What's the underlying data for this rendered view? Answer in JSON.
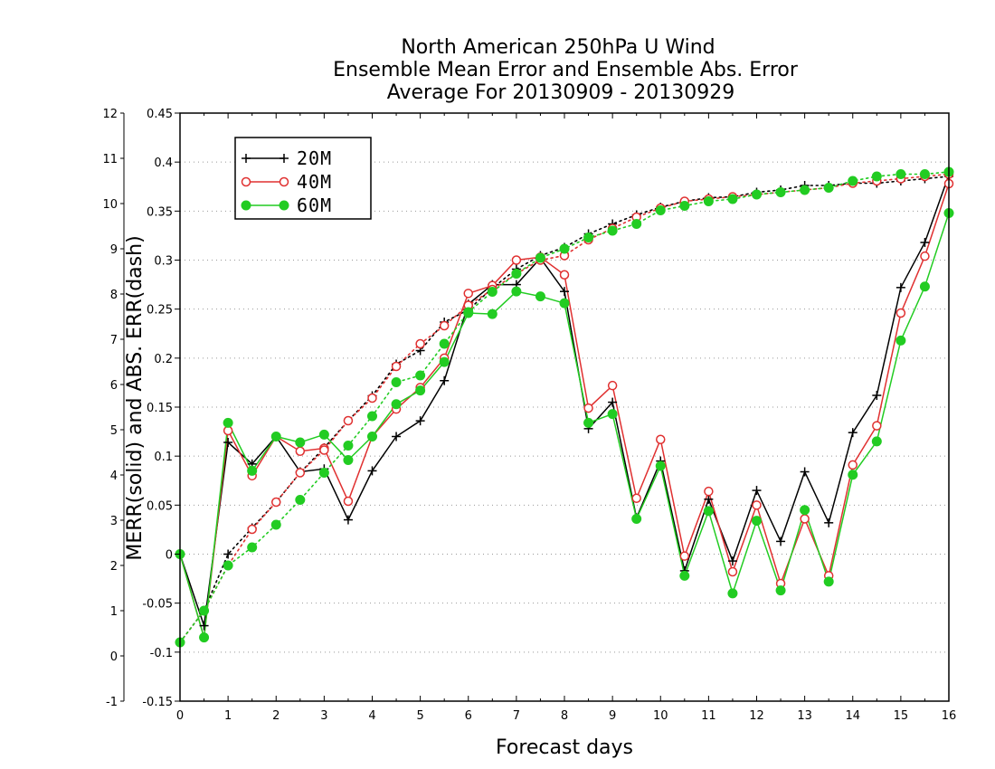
{
  "chart_data": {
    "type": "line",
    "title": [
      "North American 250hPa U Wind",
      "Ensemble Mean Error and Ensemble Abs. Error",
      "Average For 20130909 - 20130929"
    ],
    "xlabel": "Forecast days",
    "ylabel": "MERR(solid) and ABS. ERR(dash)",
    "xlim": [
      0,
      16
    ],
    "x_ticks": [
      "0",
      "1",
      "2",
      "3",
      "4",
      "5",
      "6",
      "7",
      "8",
      "9",
      "10",
      "11",
      "12",
      "13",
      "14",
      "15",
      "16"
    ],
    "ylim_left": [
      -0.15,
      0.45
    ],
    "y_left_ticks": [
      "-0.15",
      "-0.1",
      "-0.05",
      "0",
      "0.05",
      "0.1",
      "0.15",
      "0.2",
      "0.25",
      "0.3",
      "0.35",
      "0.4",
      "0.45"
    ],
    "ylim_right": [
      -1,
      12
    ],
    "y_right_ticks": [
      "-1",
      "0",
      "1",
      "2",
      "3",
      "4",
      "5",
      "6",
      "7",
      "8",
      "9",
      "10",
      "11",
      "12"
    ],
    "grid": "horizontal dotted",
    "legend_position": "top-left",
    "x": [
      0,
      0.5,
      1,
      1.5,
      2,
      2.5,
      3,
      3.5,
      4,
      4.5,
      5,
      5.5,
      6,
      6.5,
      7,
      7.5,
      8,
      8.5,
      9,
      9.5,
      10,
      10.5,
      11,
      11.5,
      12,
      12.5,
      13,
      13.5,
      14,
      14.5,
      15,
      15.5,
      16
    ],
    "series": [
      {
        "name": "20M",
        "color": "#000000",
        "marker": "plus",
        "merr_left_axis": [
          0.0,
          -0.073,
          0.114,
          0.092,
          0.12,
          0.084,
          0.087,
          0.035,
          0.085,
          0.12,
          0.136,
          0.177,
          0.255,
          0.275,
          0.275,
          0.302,
          0.268,
          0.128,
          0.155,
          0.037,
          0.095,
          -0.017,
          0.056,
          -0.007,
          0.065,
          0.013,
          0.084,
          0.032,
          0.124,
          0.162,
          0.272,
          0.318,
          0.387
        ],
        "abs_err_right_axis": [
          0.3,
          1.0,
          2.25,
          2.83,
          3.4,
          4.05,
          4.6,
          5.2,
          5.75,
          6.45,
          6.75,
          7.38,
          7.65,
          8.13,
          8.55,
          8.85,
          9.03,
          9.33,
          9.55,
          9.75,
          9.92,
          10.05,
          10.13,
          10.15,
          10.25,
          10.3,
          10.4,
          10.4,
          10.45,
          10.45,
          10.5,
          10.55,
          10.6
        ]
      },
      {
        "name": "40M",
        "color": "#e03030",
        "marker": "open-circle",
        "merr_left_axis": [
          0.0,
          -0.085,
          0.126,
          0.08,
          0.12,
          0.105,
          0.108,
          0.054,
          0.12,
          0.148,
          0.17,
          0.2,
          0.266,
          0.274,
          0.3,
          0.303,
          0.285,
          0.149,
          0.172,
          0.057,
          0.117,
          -0.002,
          0.064,
          -0.018,
          0.05,
          -0.03,
          0.036,
          -0.022,
          0.091,
          0.131,
          0.246,
          0.304,
          0.378
        ],
        "abs_err_right_axis": [
          0.3,
          1.0,
          2.0,
          2.8,
          3.4,
          4.05,
          4.55,
          5.2,
          5.7,
          6.4,
          6.9,
          7.3,
          7.75,
          8.1,
          8.45,
          8.75,
          8.85,
          9.2,
          9.45,
          9.7,
          9.9,
          10.05,
          10.1,
          10.15,
          10.2,
          10.25,
          10.3,
          10.35,
          10.45,
          10.5,
          10.55,
          10.6,
          10.65
        ]
      },
      {
        "name": "60M",
        "color": "#22cc22",
        "marker": "filled-circle",
        "merr_left_axis": [
          0.0,
          -0.085,
          0.134,
          0.085,
          0.12,
          0.114,
          0.122,
          0.096,
          0.12,
          0.153,
          0.167,
          0.196,
          0.246,
          0.245,
          0.268,
          0.263,
          0.256,
          0.134,
          0.143,
          0.036,
          0.09,
          -0.022,
          0.044,
          -0.04,
          0.034,
          -0.037,
          0.045,
          -0.028,
          0.081,
          0.115,
          0.218,
          0.273,
          0.348
        ],
        "abs_err_right_axis": [
          0.3,
          1.0,
          2.0,
          2.4,
          2.9,
          3.45,
          4.05,
          4.65,
          5.3,
          6.05,
          6.2,
          6.9,
          7.6,
          8.05,
          8.45,
          8.8,
          9.0,
          9.25,
          9.4,
          9.55,
          9.85,
          9.95,
          10.05,
          10.1,
          10.2,
          10.25,
          10.3,
          10.35,
          10.5,
          10.6,
          10.65,
          10.65,
          10.7
        ]
      }
    ]
  }
}
